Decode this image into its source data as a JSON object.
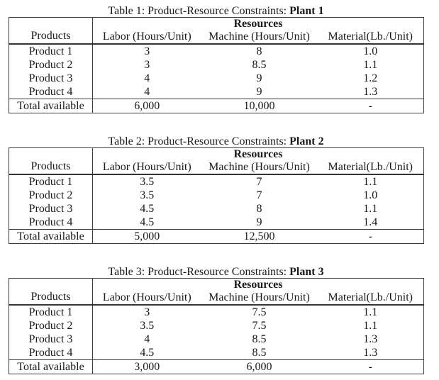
{
  "page": {
    "background_color": "#ffffff",
    "text_color": "#1a1a1a",
    "border_color": "#3a3a3a"
  },
  "tables": [
    {
      "caption_prefix": "Table 1: Product-Resource Constraints:",
      "caption_plant": "Plant 1",
      "resources_header": "Resources",
      "columns": [
        "Products",
        "Labor (Hours/Unit)",
        "Machine (Hours/Unit)",
        "Material(Lb./Unit)"
      ],
      "rows": [
        [
          "Product 1",
          "3",
          "8",
          "1.0"
        ],
        [
          "Product 2",
          "3",
          "8.5",
          "1.1"
        ],
        [
          "Product 3",
          "4",
          "9",
          "1.2"
        ],
        [
          "Product 4",
          "4",
          "9",
          "1.3"
        ]
      ],
      "total": [
        "Total available",
        "6,000",
        "10,000",
        "-"
      ]
    },
    {
      "caption_prefix": "Table 2: Product-Resource Constraints:",
      "caption_plant": "Plant 2",
      "resources_header": "Resources",
      "columns": [
        "Products",
        "Labor (Hours/Unit)",
        "Machine (Hours/Unit)",
        "Material(Lb./Unit)"
      ],
      "rows": [
        [
          "Product 1",
          "3.5",
          "7",
          "1.1"
        ],
        [
          "Product 2",
          "3.5",
          "7",
          "1.0"
        ],
        [
          "Product 3",
          "4.5",
          "8",
          "1.1"
        ],
        [
          "Product 4",
          "4.5",
          "9",
          "1.4"
        ]
      ],
      "total": [
        "Total available",
        "5,000",
        "12,500",
        "-"
      ]
    },
    {
      "caption_prefix": "Table 3: Product-Resource Constraints:",
      "caption_plant": "Plant 3",
      "resources_header": "Resources",
      "columns": [
        "Products",
        "Labor (Hours/Unit)",
        "Machine (Hours/Unit)",
        "Material(Lb./Unit)"
      ],
      "rows": [
        [
          "Product 1",
          "3",
          "7.5",
          "1.1"
        ],
        [
          "Product 2",
          "3.5",
          "7.5",
          "1.1"
        ],
        [
          "Product 3",
          "4",
          "8.5",
          "1.3"
        ],
        [
          "Product 4",
          "4.5",
          "8.5",
          "1.3"
        ]
      ],
      "total": [
        "Total available",
        "3,000",
        "6,000",
        "-"
      ]
    }
  ]
}
